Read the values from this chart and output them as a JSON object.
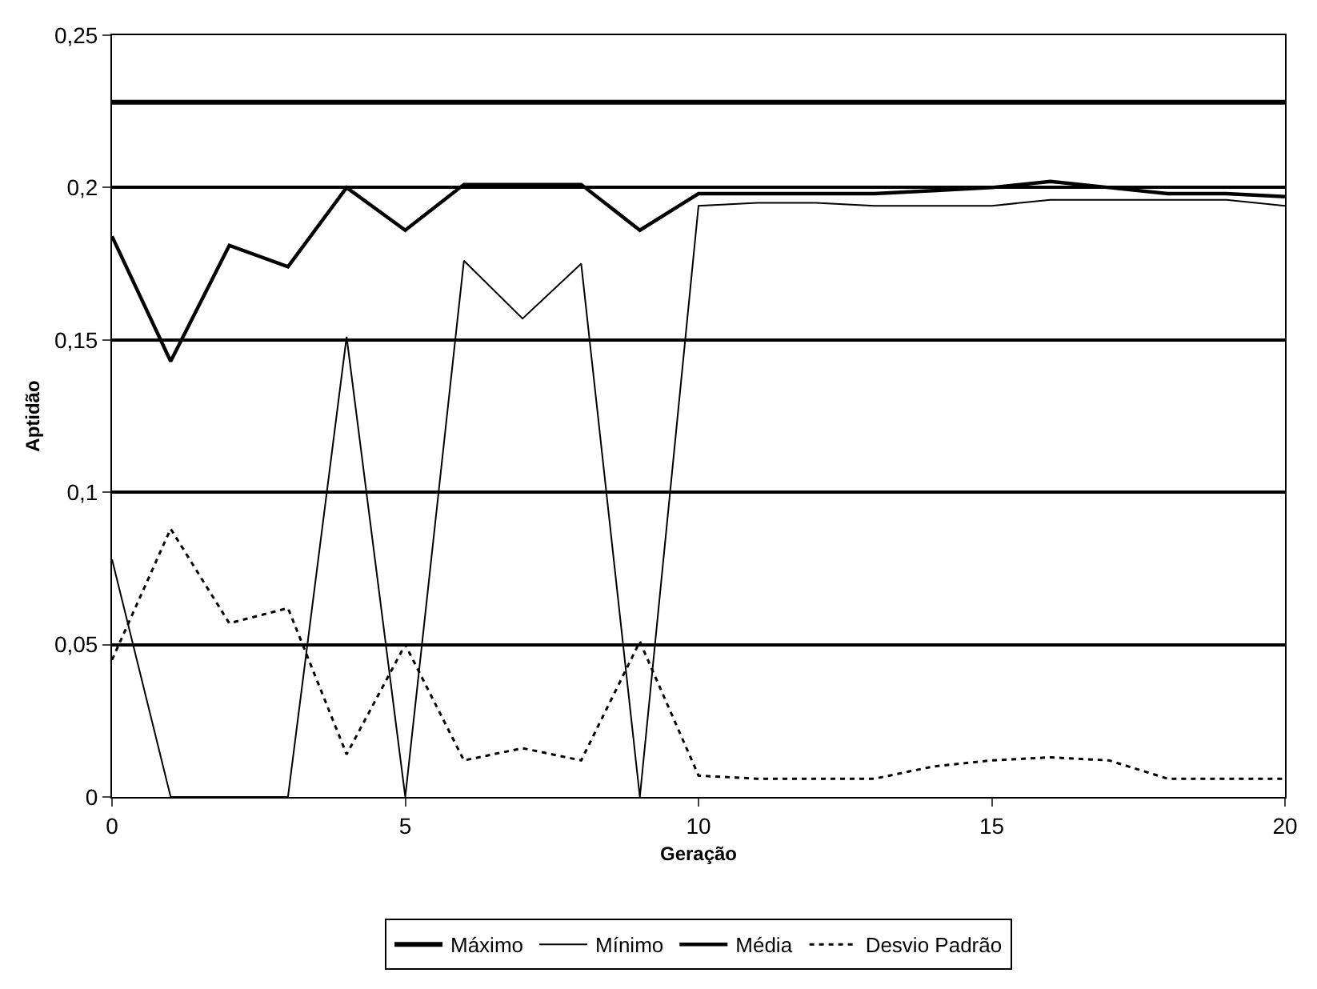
{
  "chart_data": {
    "type": "line",
    "xlabel": "Geração",
    "ylabel": "Aptidão",
    "x": [
      0,
      1,
      2,
      3,
      4,
      5,
      6,
      7,
      8,
      9,
      10,
      11,
      12,
      13,
      14,
      15,
      16,
      17,
      18,
      19,
      20
    ],
    "series": [
      {
        "name": "Máximo",
        "color": "#000000",
        "line_style": "solid",
        "values": [
          0.228,
          0.228,
          0.228,
          0.228,
          0.228,
          0.228,
          0.228,
          0.228,
          0.228,
          0.228,
          0.228,
          0.228,
          0.228,
          0.228,
          0.228,
          0.228,
          0.228,
          0.228,
          0.228,
          0.228,
          0.228
        ]
      },
      {
        "name": "Mínimo",
        "color": "#000000",
        "line_style": "solid",
        "values": [
          0.078,
          0,
          0,
          0,
          0.151,
          0,
          0.176,
          0.157,
          0.175,
          0,
          0.194,
          0.195,
          0.195,
          0.194,
          0.194,
          0.194,
          0.196,
          0.196,
          0.196,
          0.196,
          0.194
        ]
      },
      {
        "name": "Média",
        "color": "#000000",
        "line_style": "solid",
        "values": [
          0.184,
          0.143,
          0.181,
          0.174,
          0.2,
          0.186,
          0.201,
          0.201,
          0.201,
          0.186,
          0.198,
          0.198,
          0.198,
          0.198,
          0.199,
          0.2,
          0.202,
          0.2,
          0.198,
          0.198,
          0.197
        ]
      },
      {
        "name": "Desvio Padrão",
        "color": "#000000",
        "line_style": "dotted",
        "values": [
          0.045,
          0.088,
          0.057,
          0.062,
          0.014,
          0.05,
          0.012,
          0.016,
          0.012,
          0.051,
          0.007,
          0.006,
          0.006,
          0.006,
          0.01,
          0.012,
          0.013,
          0.012,
          0.006,
          0.006,
          0.006
        ]
      }
    ],
    "xlim": [
      0,
      20
    ],
    "xticks": [
      0,
      5,
      10,
      15,
      20
    ],
    "ylim": [
      0,
      0.25
    ],
    "yticks": [
      {
        "value": 0,
        "label": "0"
      },
      {
        "value": 0.05,
        "label": "0,05"
      },
      {
        "value": 0.1,
        "label": "0,1"
      },
      {
        "value": 0.15,
        "label": "0,15"
      },
      {
        "value": 0.2,
        "label": "0,2"
      },
      {
        "value": 0.25,
        "label": "0,25"
      }
    ],
    "grid": "y",
    "legend": "bottom",
    "marker": "none"
  }
}
